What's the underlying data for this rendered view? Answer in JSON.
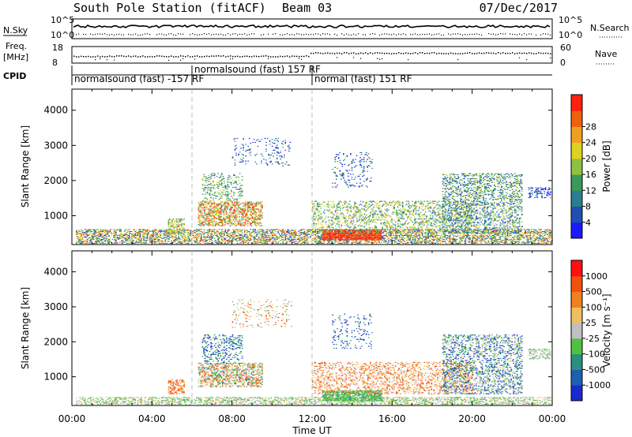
{
  "header": {
    "title": "South Pole Station (fitACF)",
    "beam": "Beam 03",
    "date": "07/Dec/2017"
  },
  "panels": {
    "nsky_label": "N.Sky",
    "nsky_ticks": [
      "10^5",
      "10^0"
    ],
    "nsearch_label": "N.Search",
    "nsearch_ticks": [
      "10^5",
      "10^0"
    ],
    "freq_label": "Freq.",
    "freq_unit": "[MHz]",
    "freq_ticks": [
      "18",
      "8"
    ],
    "nave_label": "Nave",
    "nave_ticks": [
      "60",
      "0"
    ],
    "cpid_label": "CPID",
    "cpid_segments": [
      {
        "label": "normalsound (fast) -157 RF",
        "start_hour": 0.0
      },
      {
        "label": "normalsound (fast) 157 RF",
        "start_hour": 6.0
      },
      {
        "label": "normal (fast) 151 RF",
        "start_hour": 12.0
      }
    ]
  },
  "chart_data": [
    {
      "type": "heatmap",
      "name": "power",
      "ylabel": "Slant Range [km]",
      "yticks": [
        1000,
        2000,
        3000,
        4000
      ],
      "ylim": [
        180,
        4600
      ],
      "xlim_hours": [
        0,
        24
      ],
      "colorbar_label": "Power [dB]",
      "colorbar_ticks": [
        "4",
        "8",
        "12",
        "16",
        "20",
        "24",
        "28"
      ],
      "colorbar_colors": [
        "#1a1aff",
        "#1f4fb0",
        "#2a7f8f",
        "#3a9a5a",
        "#90c040",
        "#e0d020",
        "#f0a020",
        "#f06010",
        "#ff2010"
      ],
      "regions": [
        {
          "t0": 0.2,
          "t1": 24.0,
          "r0": 200,
          "r1": 600,
          "density": 0.55,
          "levels": [
            0.1,
            0.9
          ]
        },
        {
          "t0": 4.8,
          "t1": 5.6,
          "r0": 500,
          "r1": 900,
          "density": 0.5,
          "levels": [
            0.3,
            0.8
          ]
        },
        {
          "t0": 6.3,
          "t1": 9.5,
          "r0": 700,
          "r1": 1400,
          "density": 0.55,
          "levels": [
            0.3,
            1.0
          ]
        },
        {
          "t0": 6.5,
          "t1": 8.5,
          "r0": 1400,
          "r1": 2200,
          "density": 0.25,
          "levels": [
            0.2,
            0.6
          ]
        },
        {
          "t0": 8.0,
          "t1": 11.0,
          "r0": 2400,
          "r1": 3200,
          "density": 0.12,
          "levels": [
            0.0,
            0.4
          ]
        },
        {
          "t0": 12.5,
          "t1": 15.5,
          "r0": 300,
          "r1": 600,
          "density": 0.85,
          "levels": [
            0.85,
            1.0
          ]
        },
        {
          "t0": 12.0,
          "t1": 20.0,
          "r0": 500,
          "r1": 1400,
          "density": 0.3,
          "levels": [
            0.2,
            0.7
          ]
        },
        {
          "t0": 13.0,
          "t1": 15.0,
          "r0": 1800,
          "r1": 2800,
          "density": 0.12,
          "levels": [
            0.0,
            0.4
          ]
        },
        {
          "t0": 18.5,
          "t1": 22.5,
          "r0": 500,
          "r1": 2200,
          "density": 0.35,
          "levels": [
            0.1,
            0.6
          ]
        },
        {
          "t0": 22.8,
          "t1": 23.9,
          "r0": 1500,
          "r1": 1800,
          "density": 0.4,
          "levels": [
            0.0,
            0.3
          ]
        }
      ]
    },
    {
      "type": "heatmap",
      "name": "velocity",
      "ylabel": "Slant Range [km]",
      "yticks": [
        1000,
        2000,
        3000,
        4000
      ],
      "ylim": [
        180,
        4600
      ],
      "xlim_hours": [
        0,
        24
      ],
      "colorbar_label": "Velocity [m s⁻¹]",
      "colorbar_ticks": [
        "1000",
        "500",
        "100",
        "25",
        "-25",
        "-100",
        "-500",
        "-1000"
      ],
      "colorbar_colors": [
        "#1a2ad0",
        "#1f5fb0",
        "#2a8f7f",
        "#50c040",
        "#c0c0c0",
        "#f0c060",
        "#f08020",
        "#f05010",
        "#ff1010"
      ],
      "regions": [
        {
          "t0": 0.2,
          "t1": 24.0,
          "r0": 200,
          "r1": 400,
          "density": 0.5,
          "levels": [
            0.35,
            0.6
          ]
        },
        {
          "t0": 4.8,
          "t1": 5.6,
          "r0": 500,
          "r1": 900,
          "density": 0.5,
          "levels": [
            0.7,
            0.85
          ]
        },
        {
          "t0": 6.3,
          "t1": 9.5,
          "r0": 700,
          "r1": 1400,
          "density": 0.5,
          "levels": [
            0.2,
            0.9
          ]
        },
        {
          "t0": 6.5,
          "t1": 8.5,
          "r0": 1400,
          "r1": 2200,
          "density": 0.25,
          "levels": [
            0.0,
            0.4
          ]
        },
        {
          "t0": 8.0,
          "t1": 11.0,
          "r0": 2400,
          "r1": 3200,
          "density": 0.12,
          "levels": [
            0.4,
            0.9
          ]
        },
        {
          "t0": 12.5,
          "t1": 15.5,
          "r0": 300,
          "r1": 600,
          "density": 0.8,
          "levels": [
            0.3,
            0.45
          ]
        },
        {
          "t0": 12.0,
          "t1": 20.0,
          "r0": 500,
          "r1": 1400,
          "density": 0.3,
          "levels": [
            0.5,
            0.9
          ]
        },
        {
          "t0": 13.0,
          "t1": 15.0,
          "r0": 1800,
          "r1": 2800,
          "density": 0.12,
          "levels": [
            0.0,
            0.3
          ]
        },
        {
          "t0": 18.5,
          "t1": 22.5,
          "r0": 500,
          "r1": 2200,
          "density": 0.35,
          "levels": [
            0.0,
            0.6
          ]
        },
        {
          "t0": 22.8,
          "t1": 23.9,
          "r0": 1500,
          "r1": 1800,
          "density": 0.4,
          "levels": [
            0.4,
            0.5
          ]
        }
      ]
    }
  ],
  "xaxis": {
    "ticks": [
      "00:00",
      "04:00",
      "08:00",
      "12:00",
      "16:00",
      "20:00",
      "00:00"
    ],
    "label": "Time UT"
  }
}
